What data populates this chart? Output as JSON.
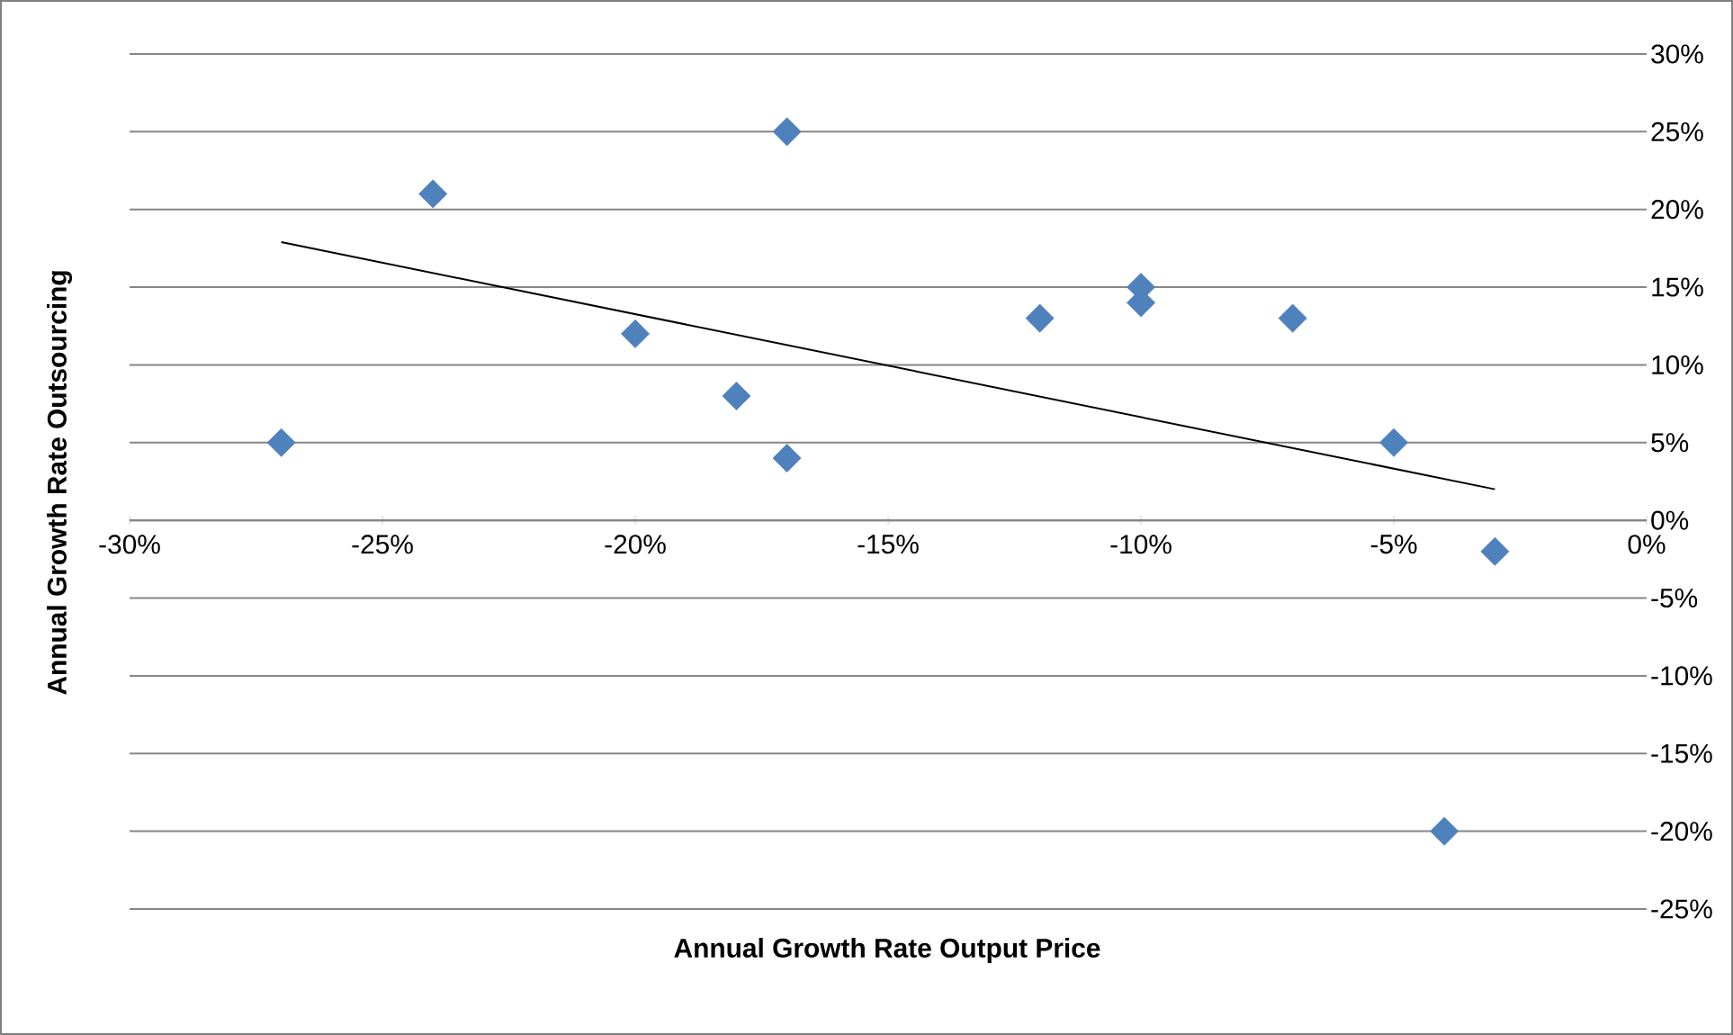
{
  "chart_data": {
    "type": "scatter",
    "xlabel": "Annual Growth Rate Output Price",
    "ylabel": "Annual Growth Rate Outsourcing",
    "x": [
      -27,
      -24,
      -20,
      -18,
      -17,
      -17,
      -12,
      -10,
      -10,
      -7,
      -5,
      -3,
      -4
    ],
    "series": [
      {
        "color": "#4f81bd",
        "marker": "diamond",
        "values": [
          5,
          21,
          12,
          8,
          25,
          4,
          13,
          15,
          14,
          13,
          5,
          -2,
          -20
        ]
      },
      {
        "type": "line",
        "color": "#000000",
        "marker": "none",
        "x": [
          -27,
          -3
        ],
        "values": [
          17.9,
          2.0
        ]
      }
    ],
    "xlim": [
      -30,
      0
    ],
    "ylim": [
      -25,
      30
    ],
    "xticks": [
      {
        "value": -30,
        "label": "-30%"
      },
      {
        "value": -25,
        "label": "-25%"
      },
      {
        "value": -20,
        "label": "-20%"
      },
      {
        "value": -15,
        "label": "-15%"
      },
      {
        "value": -10,
        "label": "-10%"
      },
      {
        "value": -5,
        "label": "-5%"
      },
      {
        "value": 0,
        "label": "0%"
      }
    ],
    "yticks": [
      {
        "value": -25,
        "label": "-25%"
      },
      {
        "value": -20,
        "label": "-20%"
      },
      {
        "value": -15,
        "label": "-15%"
      },
      {
        "value": -10,
        "label": "-10%"
      },
      {
        "value": -5,
        "label": "-5%"
      },
      {
        "value": 0,
        "label": "0%"
      },
      {
        "value": 5,
        "label": "5%"
      },
      {
        "value": 10,
        "label": "10%"
      },
      {
        "value": 15,
        "label": "15%"
      },
      {
        "value": 20,
        "label": "20%"
      },
      {
        "value": 25,
        "label": "25%"
      },
      {
        "value": 30,
        "label": "30%"
      }
    ],
    "grid": "y"
  }
}
